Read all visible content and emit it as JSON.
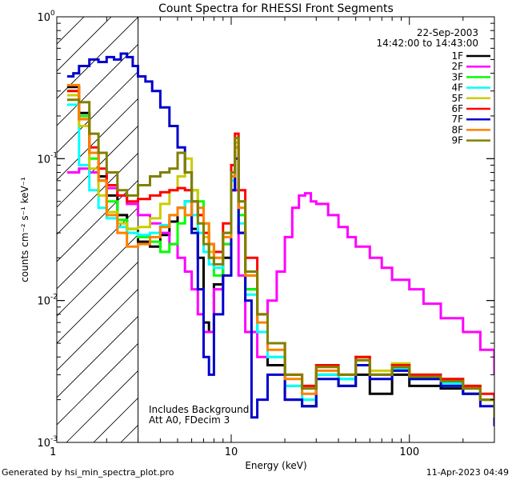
{
  "chart_data": {
    "type": "line",
    "title": "Count Spectra for RHESSI Front Segments",
    "xlabel": "Energy (keV)",
    "ylabel": "counts cm⁻² s⁻¹ keV⁻¹",
    "xscale": "log",
    "yscale": "log",
    "xlim": [
      1.05,
      300
    ],
    "ylim": [
      0.001,
      1.0
    ],
    "x_ticks": [
      {
        "value": 1,
        "label": "1"
      },
      {
        "value": 10,
        "label": "10"
      },
      {
        "value": 100,
        "label": "100"
      }
    ],
    "y_ticks": [
      {
        "value": 0.001,
        "base": "10",
        "exp": "-3"
      },
      {
        "value": 0.01,
        "base": "10",
        "exp": "-2"
      },
      {
        "value": 0.1,
        "base": "10",
        "exp": "-1"
      },
      {
        "value": 1.0,
        "base": "10",
        "exp": "0"
      }
    ],
    "shaded_region": {
      "x_from": 1.05,
      "x_to": 3.0,
      "pattern": "diagonal-hatch"
    },
    "legend": {
      "position": "top-right",
      "date": "22-Sep-2003",
      "time_range": "14:42:00 to 14:43:00"
    },
    "annotations": [
      "Includes Background",
      "Att A0, FDecim 3"
    ],
    "series": [
      {
        "name": "1F",
        "color": "#000000",
        "x": [
          1.2,
          1.4,
          1.6,
          1.8,
          2.0,
          2.3,
          2.6,
          3.0,
          3.5,
          4.0,
          4.5,
          5.0,
          5.5,
          6.0,
          6.5,
          7.0,
          7.5,
          8.0,
          9.0,
          10.0,
          10.5,
          11.0,
          12.0,
          14.0,
          16.0,
          20.0,
          25.0,
          30.0,
          40.0,
          50.0,
          60.0,
          80.0,
          100.0,
          150.0,
          200.0,
          250.0,
          300.0
        ],
        "y": [
          0.32,
          0.21,
          0.11,
          0.075,
          0.055,
          0.04,
          0.032,
          0.026,
          0.024,
          0.029,
          0.036,
          0.045,
          0.05,
          0.032,
          0.02,
          0.007,
          0.006,
          0.013,
          0.02,
          0.06,
          0.1,
          0.03,
          0.012,
          0.006,
          0.0035,
          0.002,
          0.0018,
          0.003,
          0.0025,
          0.003,
          0.0022,
          0.003,
          0.0025,
          0.0024,
          0.0022,
          0.002,
          0.0015
        ]
      },
      {
        "name": "2F",
        "color": "#ff00ff",
        "x": [
          1.2,
          1.4,
          1.6,
          1.8,
          2.0,
          2.3,
          2.6,
          3.0,
          3.5,
          4.0,
          4.5,
          5.0,
          5.5,
          6.0,
          6.5,
          7.0,
          7.5,
          8.0,
          9.0,
          10.0,
          10.5,
          11.0,
          12.0,
          14.0,
          16.0,
          18.0,
          20.0,
          22.0,
          24.0,
          26.0,
          28.0,
          30.0,
          35.0,
          40.0,
          45.0,
          50.0,
          60.0,
          70.0,
          80.0,
          100.0,
          120.0,
          150.0,
          200.0,
          250.0,
          300.0
        ],
        "y": [
          0.08,
          0.085,
          0.08,
          0.07,
          0.062,
          0.055,
          0.048,
          0.04,
          0.035,
          0.03,
          0.025,
          0.02,
          0.016,
          0.012,
          0.008,
          0.006,
          0.006,
          0.012,
          0.025,
          0.08,
          0.06,
          0.015,
          0.006,
          0.004,
          0.01,
          0.016,
          0.028,
          0.045,
          0.055,
          0.057,
          0.05,
          0.048,
          0.04,
          0.033,
          0.028,
          0.024,
          0.02,
          0.017,
          0.014,
          0.012,
          0.0095,
          0.0075,
          0.006,
          0.0045,
          0.003
        ]
      },
      {
        "name": "3F",
        "color": "#00ff00",
        "x": [
          1.2,
          1.4,
          1.6,
          1.8,
          2.0,
          2.3,
          2.6,
          3.0,
          3.5,
          4.0,
          4.5,
          5.0,
          5.5,
          6.0,
          6.5,
          7.0,
          7.5,
          8.0,
          9.0,
          10.0,
          10.5,
          11.0,
          12.0,
          14.0,
          16.0,
          20.0,
          25.0,
          30.0,
          40.0,
          50.0,
          60.0,
          80.0,
          100.0,
          150.0,
          200.0,
          250.0,
          300.0
        ],
        "y": [
          0.3,
          0.2,
          0.1,
          0.07,
          0.05,
          0.037,
          0.03,
          0.028,
          0.026,
          0.022,
          0.025,
          0.035,
          0.05,
          0.06,
          0.05,
          0.035,
          0.02,
          0.015,
          0.025,
          0.08,
          0.12,
          0.04,
          0.012,
          0.006,
          0.004,
          0.0025,
          0.002,
          0.003,
          0.0028,
          0.004,
          0.003,
          0.0035,
          0.003,
          0.0028,
          0.0025,
          0.002,
          0.0014
        ]
      },
      {
        "name": "4F",
        "color": "#00ffff",
        "x": [
          1.2,
          1.4,
          1.6,
          1.8,
          2.0,
          2.3,
          2.6,
          3.0,
          3.5,
          4.0,
          4.5,
          5.0,
          5.5,
          6.0,
          6.5,
          7.0,
          7.5,
          8.0,
          9.0,
          10.0,
          10.5,
          11.0,
          12.0,
          14.0,
          16.0,
          20.0,
          25.0,
          30.0,
          40.0,
          50.0,
          60.0,
          80.0,
          100.0,
          150.0,
          200.0,
          250.0,
          300.0
        ],
        "y": [
          0.24,
          0.09,
          0.06,
          0.045,
          0.038,
          0.033,
          0.03,
          0.029,
          0.03,
          0.034,
          0.04,
          0.045,
          0.05,
          0.04,
          0.03,
          0.022,
          0.018,
          0.017,
          0.03,
          0.07,
          0.1,
          0.035,
          0.011,
          0.006,
          0.004,
          0.0025,
          0.002,
          0.003,
          0.0028,
          0.0038,
          0.003,
          0.0033,
          0.0028,
          0.0026,
          0.0024,
          0.002,
          0.0014
        ]
      },
      {
        "name": "5F",
        "color": "#cccc00",
        "x": [
          1.2,
          1.4,
          1.6,
          1.8,
          2.0,
          2.3,
          2.6,
          3.0,
          3.5,
          4.0,
          4.5,
          5.0,
          5.5,
          6.0,
          6.5,
          7.0,
          7.5,
          8.0,
          9.0,
          10.0,
          10.5,
          11.0,
          12.0,
          14.0,
          16.0,
          20.0,
          25.0,
          30.0,
          40.0,
          50.0,
          60.0,
          80.0,
          100.0,
          150.0,
          200.0,
          250.0,
          300.0
        ],
        "y": [
          0.28,
          0.17,
          0.085,
          0.055,
          0.042,
          0.035,
          0.032,
          0.033,
          0.038,
          0.048,
          0.06,
          0.075,
          0.1,
          0.06,
          0.04,
          0.028,
          0.022,
          0.02,
          0.03,
          0.08,
          0.13,
          0.05,
          0.015,
          0.008,
          0.005,
          0.003,
          0.0025,
          0.0035,
          0.003,
          0.004,
          0.0032,
          0.0036,
          0.003,
          0.0028,
          0.0025,
          0.002,
          0.0015
        ]
      },
      {
        "name": "6F",
        "color": "#ff0000",
        "x": [
          1.2,
          1.4,
          1.6,
          1.8,
          2.0,
          2.3,
          2.6,
          3.0,
          3.5,
          4.0,
          4.5,
          5.0,
          5.5,
          6.0,
          6.5,
          7.0,
          7.5,
          8.0,
          9.0,
          10.0,
          10.5,
          11.0,
          12.0,
          14.0,
          16.0,
          20.0,
          25.0,
          30.0,
          40.0,
          50.0,
          60.0,
          80.0,
          100.0,
          150.0,
          200.0,
          250.0,
          300.0
        ],
        "y": [
          0.3,
          0.19,
          0.12,
          0.085,
          0.065,
          0.055,
          0.05,
          0.052,
          0.055,
          0.058,
          0.06,
          0.062,
          0.06,
          0.05,
          0.04,
          0.03,
          0.025,
          0.022,
          0.035,
          0.09,
          0.15,
          0.06,
          0.02,
          0.008,
          0.005,
          0.003,
          0.0025,
          0.0035,
          0.003,
          0.004,
          0.003,
          0.0035,
          0.003,
          0.0028,
          0.0025,
          0.0022,
          0.0016
        ]
      },
      {
        "name": "7F",
        "color": "#0000cc",
        "x": [
          1.2,
          1.3,
          1.4,
          1.6,
          1.8,
          2.0,
          2.2,
          2.4,
          2.6,
          2.8,
          3.0,
          3.3,
          3.6,
          4.0,
          4.5,
          5.0,
          5.5,
          6.0,
          6.5,
          7.0,
          7.5,
          8.0,
          9.0,
          10.0,
          10.5,
          11.0,
          12.0,
          13.0,
          14.0,
          16.0,
          20.0,
          25.0,
          30.0,
          40.0,
          50.0,
          60.0,
          80.0,
          100.0,
          150.0,
          200.0,
          250.0,
          300.0
        ],
        "y": [
          0.38,
          0.4,
          0.45,
          0.5,
          0.48,
          0.52,
          0.5,
          0.55,
          0.52,
          0.45,
          0.38,
          0.35,
          0.3,
          0.23,
          0.17,
          0.12,
          0.08,
          0.03,
          0.012,
          0.004,
          0.003,
          0.008,
          0.015,
          0.06,
          0.1,
          0.03,
          0.01,
          0.0015,
          0.002,
          0.003,
          0.002,
          0.0018,
          0.0028,
          0.0025,
          0.0035,
          0.0028,
          0.0032,
          0.0028,
          0.0025,
          0.0022,
          0.0018,
          0.0013
        ]
      },
      {
        "name": "8F",
        "color": "#ff8000",
        "x": [
          1.2,
          1.4,
          1.6,
          1.8,
          2.0,
          2.3,
          2.6,
          3.0,
          3.5,
          4.0,
          4.5,
          5.0,
          5.5,
          6.0,
          6.5,
          7.0,
          7.5,
          8.0,
          9.0,
          10.0,
          10.5,
          11.0,
          12.0,
          14.0,
          16.0,
          20.0,
          25.0,
          30.0,
          40.0,
          50.0,
          60.0,
          80.0,
          100.0,
          150.0,
          200.0,
          250.0,
          300.0
        ],
        "y": [
          0.33,
          0.19,
          0.11,
          0.07,
          0.04,
          0.03,
          0.024,
          0.025,
          0.028,
          0.033,
          0.04,
          0.045,
          0.04,
          0.05,
          0.045,
          0.035,
          0.025,
          0.02,
          0.028,
          0.075,
          0.12,
          0.045,
          0.015,
          0.007,
          0.0045,
          0.0028,
          0.0022,
          0.0032,
          0.003,
          0.0038,
          0.003,
          0.0034,
          0.0029,
          0.0027,
          0.0024,
          0.002,
          0.0015
        ]
      },
      {
        "name": "9F",
        "color": "#808000",
        "x": [
          1.2,
          1.4,
          1.6,
          1.8,
          2.0,
          2.3,
          2.6,
          3.0,
          3.5,
          4.0,
          4.5,
          5.0,
          5.5,
          6.0,
          6.5,
          7.0,
          7.5,
          8.0,
          9.0,
          10.0,
          10.5,
          11.0,
          12.0,
          14.0,
          16.0,
          20.0,
          25.0,
          30.0,
          40.0,
          50.0,
          60.0,
          80.0,
          100.0,
          150.0,
          200.0,
          250.0,
          300.0
        ],
        "y": [
          0.26,
          0.25,
          0.15,
          0.11,
          0.08,
          0.06,
          0.055,
          0.065,
          0.075,
          0.08,
          0.085,
          0.11,
          0.08,
          0.05,
          0.035,
          0.025,
          0.02,
          0.018,
          0.03,
          0.08,
          0.14,
          0.05,
          0.016,
          0.008,
          0.005,
          0.003,
          0.0024,
          0.0034,
          0.003,
          0.0038,
          0.003,
          0.0034,
          0.0029,
          0.0027,
          0.0024,
          0.002,
          0.0015
        ]
      }
    ]
  },
  "footer": {
    "left": "Generated by hsi_min_spectra_plot.pro",
    "right": "11-Apr-2023 04:49"
  }
}
